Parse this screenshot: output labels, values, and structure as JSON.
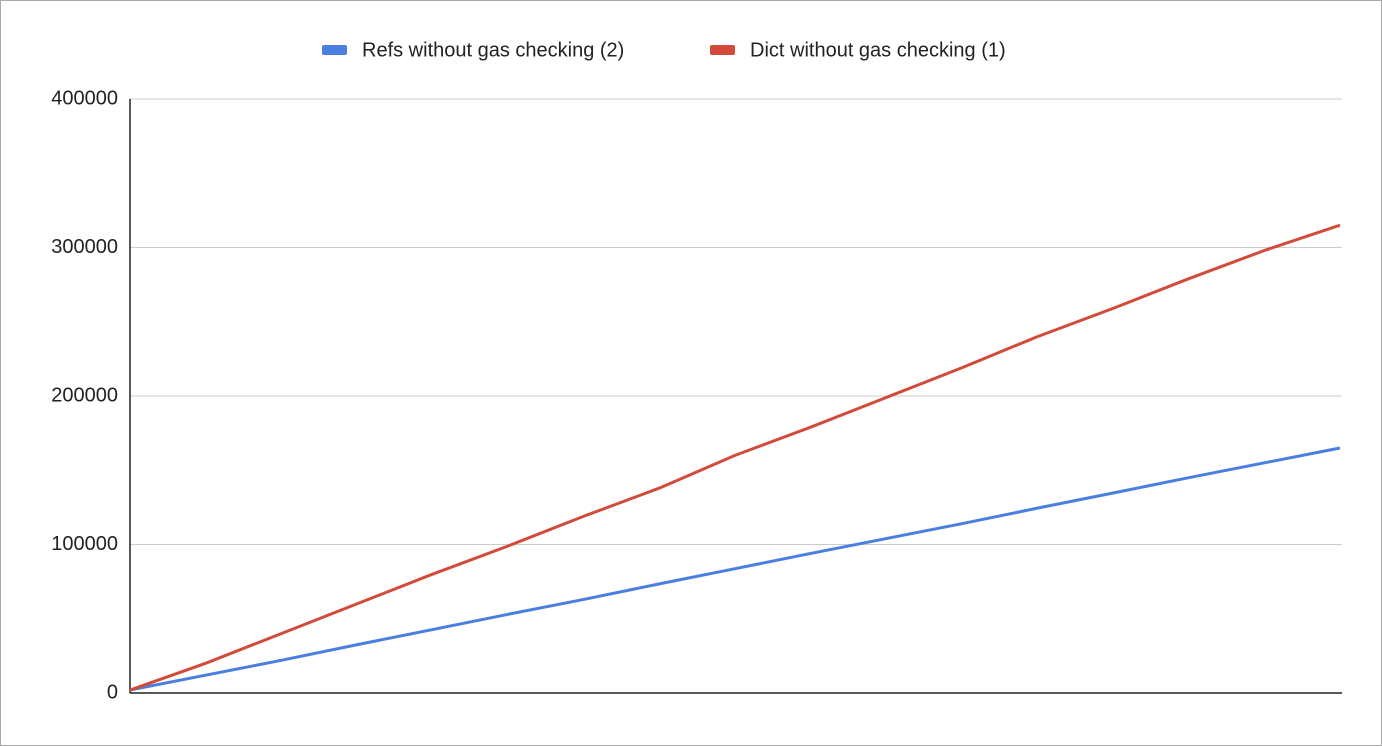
{
  "chart_data": {
    "type": "line",
    "categories": [
      null,
      null,
      null,
      null,
      null,
      null,
      null,
      null,
      null,
      null,
      null,
      null,
      null,
      null,
      null,
      null,
      null
    ],
    "series": [
      {
        "name": "Refs without gas checking (2)",
        "color": "#4a7fe0",
        "values": [
          2000,
          12000,
          22000,
          32500,
          42700,
          53000,
          63000,
          73500,
          83700,
          94000,
          104000,
          114000,
          124500,
          134700,
          145000,
          155000,
          165000
        ]
      },
      {
        "name": "Dict without gas checking (1)",
        "color": "#d24b3a",
        "values": [
          2000,
          20000,
          40000,
          60000,
          80000,
          99000,
          119000,
          138000,
          160000,
          179000,
          199000,
          219000,
          240000,
          259000,
          279000,
          298000,
          315000
        ]
      }
    ],
    "ylim": [
      0,
      400000
    ],
    "yticks": [
      0,
      100000,
      200000,
      300000,
      400000
    ],
    "grid": true,
    "legend": "top"
  }
}
